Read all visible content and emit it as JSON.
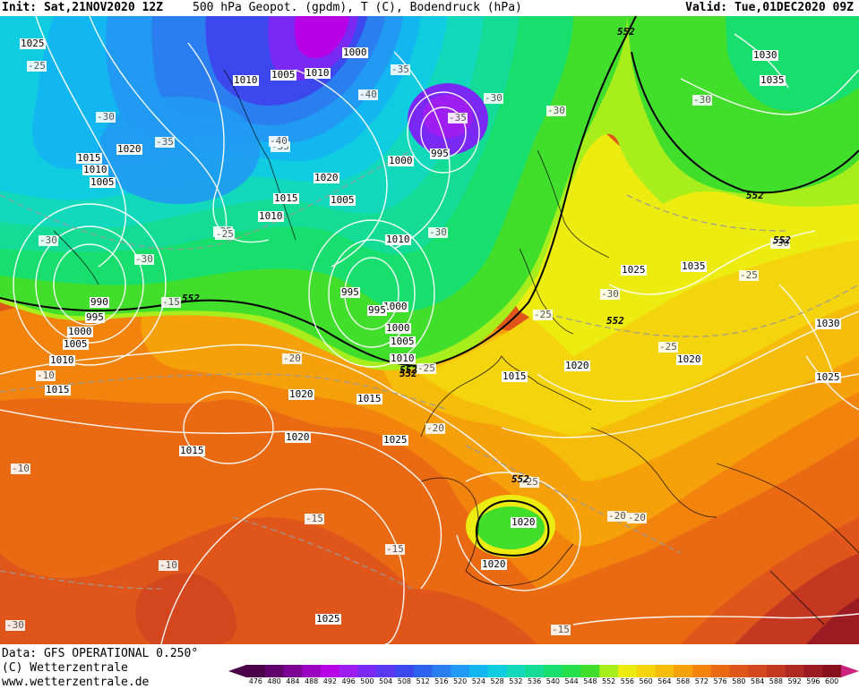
{
  "header": {
    "init": "Init: Sat,21NOV2020 12Z",
    "title": "500 hPa Geopot. (gpdm), T (C), Bodendruck (hPa)",
    "valid": "Valid: Tue,01DEC2020 09Z"
  },
  "footer": {
    "data_source": "Data: GFS OPERATIONAL 0.250°",
    "copyright": "(C) Wetterzentrale",
    "website": "www.wetterzentrale.de"
  },
  "legend": {
    "ticks": [
      "476",
      "480",
      "484",
      "488",
      "492",
      "496",
      "500",
      "504",
      "508",
      "512",
      "516",
      "520",
      "524",
      "528",
      "532",
      "536",
      "540",
      "544",
      "548",
      "552",
      "556",
      "560",
      "564",
      "568",
      "572",
      "576",
      "580",
      "584",
      "588",
      "592",
      "596",
      "600"
    ],
    "colors": [
      "#4a0048",
      "#62006c",
      "#7c0094",
      "#9a00c0",
      "#b800e6",
      "#9e1ef2",
      "#7a28f4",
      "#5a38f2",
      "#3c48ee",
      "#2c62ee",
      "#2a7ef0",
      "#209af2",
      "#12b6f0",
      "#10cce0",
      "#12d8bc",
      "#14dc96",
      "#18de6e",
      "#24de4a",
      "#42de2c",
      "#a8ee1c",
      "#ecec10",
      "#f4d40c",
      "#f6bc0a",
      "#f6a00a",
      "#f2840e",
      "#ea6a14",
      "#e0561a",
      "#d4461e",
      "#c43822",
      "#b02a24",
      "#9a1c22",
      "#880e1e"
    ],
    "end_color": "#cc2280"
  },
  "pressure_labels": [
    "1025",
    "1030",
    "1035",
    "1000",
    "1010",
    "1005",
    "1010",
    "1020",
    "1015",
    "1010",
    "1005",
    "1000",
    "995",
    "1020",
    "1015",
    "1005",
    "1010",
    "1000",
    "995",
    "1025",
    "1035",
    "990",
    "995",
    "1000",
    "1005",
    "1010",
    "1015",
    "1020",
    "1010",
    "995",
    "1000",
    "1005",
    "1010",
    "1015",
    "1020",
    "1030",
    "1025",
    "1020",
    "1025",
    "1015",
    "1020",
    "1015",
    "1020",
    "1020",
    "1025"
  ],
  "temp_labels": [
    "-25",
    "-30",
    "-35",
    "-40",
    "-30",
    "-35",
    "-35",
    "-30",
    "-25",
    "-30",
    "-30",
    "-35",
    "-40",
    "-30",
    "-25",
    "-30",
    "-30",
    "-25",
    "-20",
    "-25",
    "-30",
    "-25",
    "-15",
    "-10",
    "-20",
    "-20",
    "-25",
    "-25",
    "-15",
    "-10",
    "-15",
    "-10",
    "-20",
    "-15",
    "-30"
  ],
  "geopotential_labels": [
    "552",
    "552",
    "552",
    "552",
    "552",
    "552",
    "552",
    "552"
  ]
}
